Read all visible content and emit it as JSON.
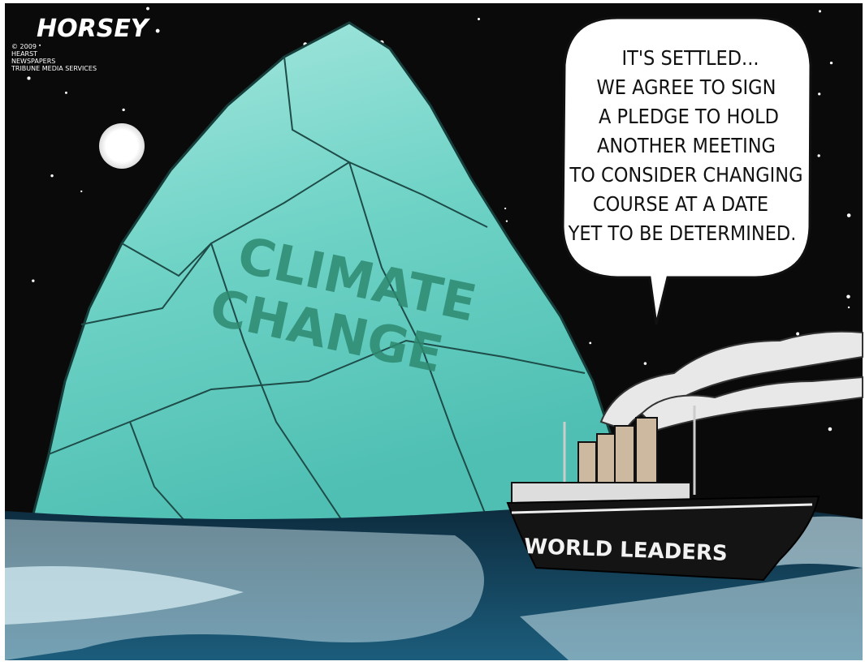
{
  "signature": {
    "name": "HORSEY",
    "credit": [
      "© 2009",
      "HEARST",
      "NEWSPAPERS",
      "TRIBUNE MEDIA SERVICES"
    ]
  },
  "iceberg": {
    "label": [
      "CLIMATE",
      "CHANGE"
    ]
  },
  "speech_bubble": {
    "lines": [
      "IT'S SETTLED...",
      "WE AGREE TO SIGN",
      "A PLEDGE TO HOLD",
      "ANOTHER MEETING",
      "TO CONSIDER CHANGING",
      "COURSE AT A DATE",
      "YET TO BE DETERMINED."
    ]
  },
  "ship": {
    "name": "WORLD LEADERS"
  }
}
